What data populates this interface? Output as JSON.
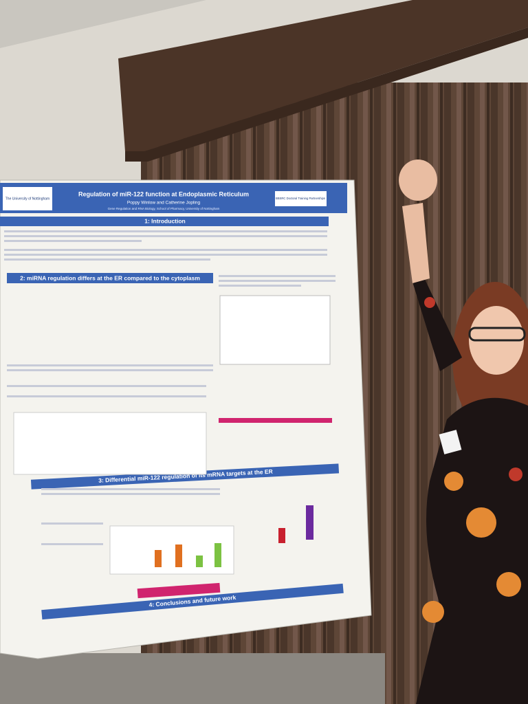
{
  "poster": {
    "title": "Regulation of miR-122 function at Endoplasmic Reticulum",
    "authors": "Poppy Winlow and Catherine Jopling",
    "affiliation": "Gene Regulation and RNA Biology, School of Pharmacy, University of Nottingham",
    "logo_text": "The University of Nottingham",
    "partner_text": "BBSRC Doctoral Training Partnerships",
    "sections": [
      "1: Introduction",
      "2: miRNA regulation differs at the ER compared to the cytoplasm",
      "3: Differential miR-122 regulation of its mRNA targets at the ER",
      "4: Conclusions and future work"
    ]
  }
}
